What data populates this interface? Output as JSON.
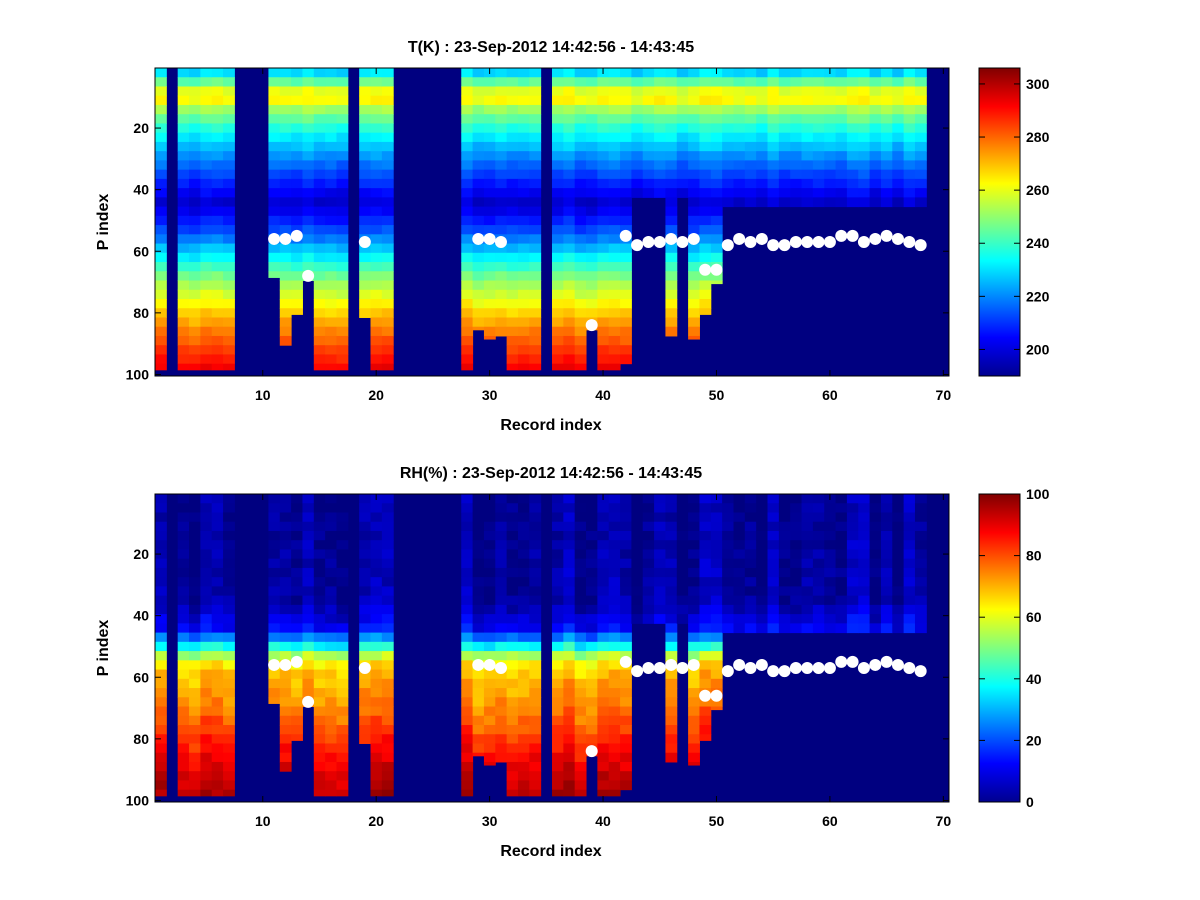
{
  "figure": {
    "background": "#ffffff"
  },
  "chart_data": [
    {
      "type": "heatmap",
      "title": "T(K) : 23-Sep-2012 14:42:56 - 14:43:45",
      "xlabel": "Record index",
      "ylabel": "P index",
      "xlim": [
        0.5,
        70.5
      ],
      "ylim": [
        100.5,
        0.5
      ],
      "xticks": [
        10,
        20,
        30,
        40,
        50,
        60,
        70
      ],
      "yticks": [
        20,
        40,
        60,
        80,
        100
      ],
      "colorbar": {
        "min": 190,
        "max": 306,
        "ticks": [
          200,
          220,
          240,
          260,
          280,
          300
        ],
        "colormap": "jet"
      },
      "missing_value": 190,
      "data_columns": [
        1,
        3,
        4,
        5,
        6,
        7,
        11,
        12,
        13,
        14,
        15,
        16,
        17,
        19,
        20,
        21,
        28,
        29,
        30,
        31,
        32,
        33,
        34,
        36,
        37,
        38,
        39,
        40,
        41,
        42,
        43,
        44,
        45,
        46,
        47,
        48,
        49,
        50,
        51,
        52,
        53,
        54,
        55,
        56,
        57,
        58,
        59,
        60,
        61,
        62,
        63,
        64,
        65,
        66,
        67,
        68
      ],
      "column_bottom": {
        "11": 68,
        "12": 90,
        "13": 80,
        "14": 69,
        "19": 81,
        "28": 98,
        "29": 85,
        "30": 88,
        "31": 87,
        "39": 85,
        "42": 96,
        "43": 42,
        "44": 42,
        "45": 42,
        "46": 87,
        "47": 42,
        "48": 88,
        "49": 80,
        "50": 70,
        "51": 45,
        "52": 45,
        "53": 45,
        "54": 45,
        "55": 45,
        "56": 45,
        "57": 45,
        "58": 45,
        "59": 45,
        "60": 45,
        "61": 45,
        "62": 45,
        "63": 45,
        "64": 45,
        "65": 45,
        "66": 45,
        "67": 45,
        "68": 45
      },
      "column_top_gap": {
        "43": 58,
        "44": 57,
        "45": 57,
        "46": 56,
        "47": 57,
        "48": 56,
        "49": 66,
        "50": 66
      },
      "profile_T_K": {
        "p_index": [
          1,
          10,
          15,
          20,
          30,
          45,
          55,
          70,
          85,
          100
        ],
        "values": [
          222,
          267,
          250,
          238,
          220,
          198,
          215,
          250,
          275,
          294
        ]
      },
      "markers": {
        "x": [
          11,
          12,
          13,
          14,
          19,
          29,
          30,
          31,
          39,
          42,
          43,
          44,
          45,
          46,
          47,
          48,
          49,
          50,
          51,
          52,
          53,
          54,
          55,
          56,
          57,
          58,
          59,
          60,
          61,
          62,
          63,
          64,
          65,
          66,
          67,
          68
        ],
        "y": [
          56,
          56,
          55,
          68,
          57,
          56,
          56,
          57,
          84,
          55,
          58,
          57,
          57,
          56,
          57,
          56,
          66,
          66,
          58,
          56,
          57,
          56,
          58,
          58,
          57,
          57,
          57,
          57,
          55,
          55,
          57,
          56,
          55,
          56,
          57,
          58
        ],
        "color": "#ffffff"
      }
    },
    {
      "type": "heatmap",
      "title": "RH(%) : 23-Sep-2012 14:42:56 - 14:43:45",
      "xlabel": "Record index",
      "ylabel": "P index",
      "xlim": [
        0.5,
        70.5
      ],
      "ylim": [
        100.5,
        0.5
      ],
      "xticks": [
        10,
        20,
        30,
        40,
        50,
        60,
        70
      ],
      "yticks": [
        20,
        40,
        60,
        80,
        100
      ],
      "colorbar": {
        "min": 0,
        "max": 100,
        "ticks": [
          0,
          20,
          40,
          60,
          80,
          100
        ],
        "colormap": "jet"
      },
      "missing_value": 0,
      "data_columns": [
        1,
        3,
        4,
        5,
        6,
        7,
        11,
        12,
        13,
        14,
        15,
        16,
        17,
        19,
        20,
        21,
        28,
        29,
        30,
        31,
        32,
        33,
        34,
        36,
        37,
        38,
        39,
        40,
        41,
        42,
        43,
        44,
        45,
        46,
        47,
        48,
        49,
        50,
        51,
        52,
        53,
        54,
        55,
        56,
        57,
        58,
        59,
        60,
        61,
        62,
        63,
        64,
        65,
        66,
        67,
        68
      ],
      "column_bottom": {
        "11": 68,
        "12": 90,
        "13": 80,
        "14": 69,
        "19": 81,
        "28": 98,
        "29": 85,
        "30": 88,
        "31": 87,
        "39": 85,
        "42": 96,
        "43": 42,
        "44": 42,
        "45": 42,
        "46": 87,
        "47": 42,
        "48": 88,
        "49": 80,
        "50": 70,
        "51": 45,
        "52": 45,
        "53": 45,
        "54": 45,
        "55": 45,
        "56": 45,
        "57": 45,
        "58": 45,
        "59": 45,
        "60": 45,
        "61": 45,
        "62": 45,
        "63": 45,
        "64": 45,
        "65": 45,
        "66": 45,
        "67": 45,
        "68": 45
      },
      "column_top_gap": {
        "43": 58,
        "44": 57,
        "45": 57,
        "46": 56,
        "47": 57,
        "48": 56,
        "49": 66,
        "50": 66
      },
      "profile_RH_pct": {
        "p_index": [
          1,
          35,
          45,
          50,
          55,
          60,
          70,
          80,
          90,
          100
        ],
        "values": [
          2,
          3,
          12,
          35,
          62,
          68,
          74,
          82,
          90,
          95
        ]
      },
      "markers": {
        "x": [
          11,
          12,
          13,
          14,
          19,
          29,
          30,
          31,
          39,
          42,
          43,
          44,
          45,
          46,
          47,
          48,
          49,
          50,
          51,
          52,
          53,
          54,
          55,
          56,
          57,
          58,
          59,
          60,
          61,
          62,
          63,
          64,
          65,
          66,
          67,
          68
        ],
        "y": [
          56,
          56,
          55,
          68,
          57,
          56,
          56,
          57,
          84,
          55,
          58,
          57,
          57,
          56,
          57,
          56,
          66,
          66,
          58,
          56,
          57,
          56,
          58,
          58,
          57,
          57,
          57,
          57,
          55,
          55,
          57,
          56,
          55,
          56,
          57,
          58
        ],
        "color": "#ffffff"
      }
    }
  ]
}
